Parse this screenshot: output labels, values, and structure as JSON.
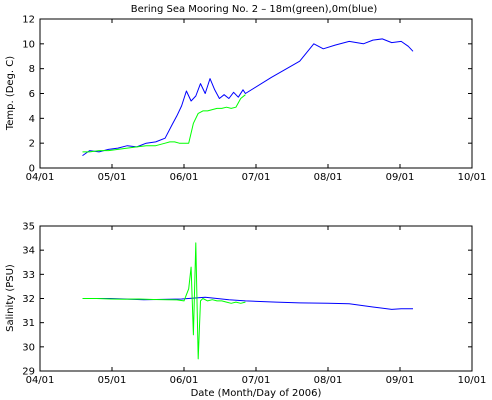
{
  "figure": {
    "title": "Bering Sea Mooring No. 2 – 18m(green),0m(blue)",
    "xlabel": "Date (Month/Day of 2006)"
  },
  "colors": {
    "shallow": "#0000ff",
    "deep": "#00ff00",
    "axes": "#000000"
  },
  "chart_data": [
    {
      "type": "line",
      "ylabel": "Temp. (Deg. C)",
      "xlim": [
        "2006-04-01",
        "2006-10-01"
      ],
      "ylim": [
        0,
        12
      ],
      "x_ticks": [
        "04/01",
        "05/01",
        "06/01",
        "07/01",
        "08/01",
        "09/01",
        "10/01"
      ],
      "y_ticks": [
        0,
        2,
        4,
        6,
        8,
        10,
        12
      ],
      "grid": false,
      "series": [
        {
          "color_key": "shallow",
          "x": [
            "2006-04-19",
            "2006-04-22",
            "2006-04-26",
            "2006-04-30",
            "2006-05-04",
            "2006-05-08",
            "2006-05-12",
            "2006-05-16",
            "2006-05-20",
            "2006-05-24",
            "2006-05-27",
            "2006-05-29",
            "2006-05-31",
            "2006-06-02",
            "2006-06-04",
            "2006-06-06",
            "2006-06-08",
            "2006-06-10",
            "2006-06-12",
            "2006-06-14",
            "2006-06-16",
            "2006-06-18",
            "2006-06-20",
            "2006-06-22",
            "2006-06-24",
            "2006-06-26",
            "2006-06-27",
            "2006-07-08",
            "2006-07-20",
            "2006-07-26",
            "2006-07-30",
            "2006-08-04",
            "2006-08-10",
            "2006-08-16",
            "2006-08-20",
            "2006-08-24",
            "2006-08-28",
            "2006-09-01",
            "2006-09-04",
            "2006-09-06"
          ],
          "y": [
            1.0,
            1.4,
            1.3,
            1.5,
            1.6,
            1.8,
            1.7,
            2.0,
            2.1,
            2.4,
            3.5,
            4.2,
            5.0,
            6.2,
            5.4,
            5.8,
            6.8,
            6.0,
            7.2,
            6.3,
            5.6,
            5.9,
            5.6,
            6.1,
            5.7,
            6.3,
            6.0,
            7.3,
            8.6,
            10.0,
            9.6,
            9.9,
            10.2,
            10.0,
            10.3,
            10.4,
            10.1,
            10.2,
            9.8,
            9.4
          ]
        },
        {
          "color_key": "deep",
          "x": [
            "2006-04-19",
            "2006-04-22",
            "2006-04-26",
            "2006-04-30",
            "2006-05-04",
            "2006-05-08",
            "2006-05-12",
            "2006-05-16",
            "2006-05-20",
            "2006-05-24",
            "2006-05-26",
            "2006-05-28",
            "2006-05-30",
            "2006-06-01",
            "2006-06-03",
            "2006-06-05",
            "2006-06-07",
            "2006-06-09",
            "2006-06-11",
            "2006-06-13",
            "2006-06-15",
            "2006-06-17",
            "2006-06-19",
            "2006-06-21",
            "2006-06-23",
            "2006-06-25",
            "2006-06-27"
          ],
          "y": [
            1.3,
            1.3,
            1.4,
            1.4,
            1.5,
            1.6,
            1.7,
            1.8,
            1.8,
            2.0,
            2.1,
            2.1,
            2.0,
            2.0,
            2.0,
            3.6,
            4.4,
            4.6,
            4.6,
            4.7,
            4.8,
            4.8,
            4.9,
            4.8,
            4.9,
            5.6,
            5.9
          ]
        }
      ]
    },
    {
      "type": "line",
      "ylabel": "Salinity (PSU)",
      "xlim": [
        "2006-04-01",
        "2006-10-01"
      ],
      "ylim": [
        29,
        35
      ],
      "x_ticks": [
        "04/01",
        "05/01",
        "06/01",
        "07/01",
        "08/01",
        "09/01",
        "10/01"
      ],
      "y_ticks": [
        29,
        30,
        31,
        32,
        33,
        34,
        35
      ],
      "grid": false,
      "series": [
        {
          "color_key": "shallow",
          "x": [
            "2006-04-19",
            "2006-05-01",
            "2006-05-15",
            "2006-05-31",
            "2006-06-10",
            "2006-06-20",
            "2006-06-27",
            "2006-07-10",
            "2006-07-20",
            "2006-08-01",
            "2006-08-10",
            "2006-08-20",
            "2006-08-28",
            "2006-09-01",
            "2006-09-06"
          ],
          "y": [
            32.0,
            32.0,
            31.95,
            31.98,
            32.05,
            31.95,
            31.9,
            31.85,
            31.82,
            31.8,
            31.78,
            31.65,
            31.55,
            31.58,
            31.58
          ]
        },
        {
          "color_key": "deep",
          "x": [
            "2006-04-19",
            "2006-04-25",
            "2006-05-01",
            "2006-05-07",
            "2006-05-13",
            "2006-05-19",
            "2006-05-25",
            "2006-05-29",
            "2006-06-01",
            "2006-06-03",
            "2006-06-04",
            "2006-06-05",
            "2006-06-06",
            "2006-06-07",
            "2006-06-08",
            "2006-06-09",
            "2006-06-11",
            "2006-06-13",
            "2006-06-15",
            "2006-06-17",
            "2006-06-19",
            "2006-06-21",
            "2006-06-23",
            "2006-06-25",
            "2006-06-27"
          ],
          "y": [
            32.0,
            32.0,
            31.98,
            31.97,
            31.98,
            31.96,
            31.95,
            31.94,
            31.9,
            32.4,
            33.3,
            30.5,
            34.3,
            29.5,
            31.9,
            32.0,
            31.9,
            31.95,
            31.9,
            31.9,
            31.85,
            31.8,
            31.85,
            31.8,
            31.85
          ]
        }
      ]
    }
  ]
}
